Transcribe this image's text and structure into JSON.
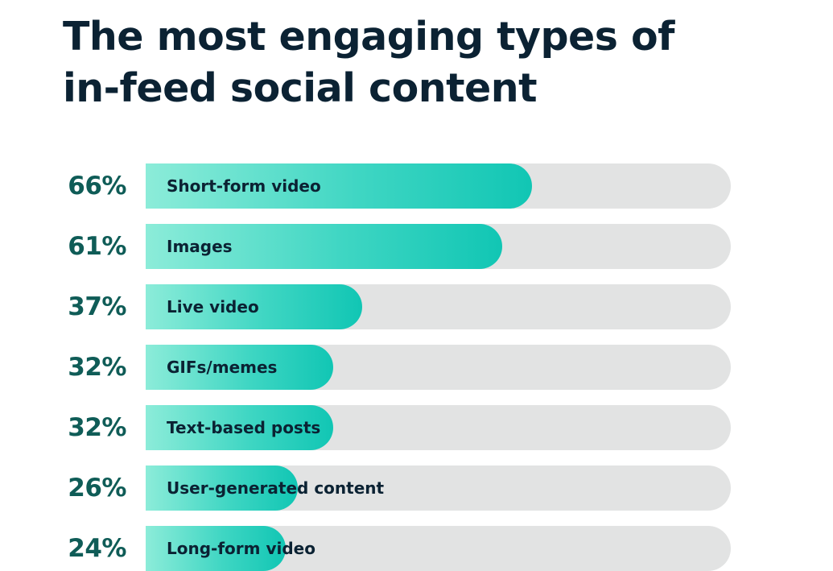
{
  "title_lines": [
    "The most engaging types of",
    "in-feed social content"
  ],
  "colors": {
    "title": "#0b2233",
    "percent": "#0f5c57",
    "track": "#e2e3e3",
    "fill_start": "#8cecd9",
    "fill_end": "#11c6b4"
  },
  "chart_data": {
    "type": "bar",
    "orientation": "horizontal",
    "title": "The most engaging types of in-feed social content",
    "categories": [
      "Short-form video",
      "Images",
      "Live video",
      "GIFs/memes",
      "Text-based posts",
      "User-generated content",
      "Long-form video"
    ],
    "values": [
      66,
      61,
      37,
      32,
      32,
      26,
      24
    ],
    "value_labels": [
      "66%",
      "61%",
      "37%",
      "32%",
      "32%",
      "26%",
      "24%"
    ],
    "xlim": [
      0,
      100
    ],
    "unit": "%",
    "grid": false,
    "legend": "none"
  }
}
